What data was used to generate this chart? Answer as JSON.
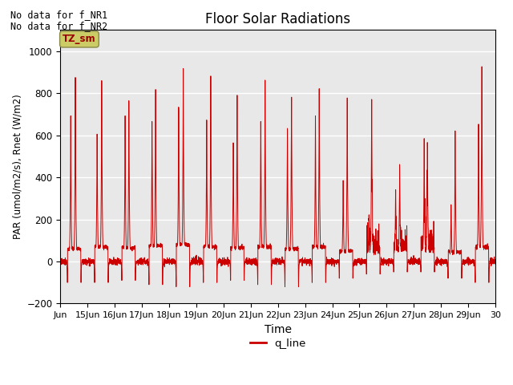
{
  "title": "Floor Solar Radiations",
  "xlabel": "Time",
  "ylabel": "PAR (umol/m2/s), Rnet (W/m2)",
  "annotations": [
    "No data for f_NR1",
    "No data for f_NR2"
  ],
  "legend_label": "q_line",
  "legend_color": "#cc0000",
  "line_color": "#cc0000",
  "tz_label": "TZ_sm",
  "tz_box_color": "#cccc66",
  "tz_text_color": "#990000",
  "background_color": "#e8e8e8",
  "ylim": [
    -200,
    1100
  ],
  "yticks": [
    -200,
    0,
    200,
    400,
    600,
    800,
    1000
  ],
  "xlim_start": 0,
  "xlim_end": 16,
  "xtick_labels": [
    "Jun",
    "15Jun",
    "16Jun",
    "17Jun",
    "18Jun",
    "19Jun",
    "20Jun",
    "21Jun",
    "22Jun",
    "23Jun",
    "24Jun",
    "25Jun",
    "26Jun",
    "27Jun",
    "28Jun",
    "29Jun",
    "30"
  ],
  "figsize": [
    6.4,
    4.8
  ],
  "dpi": 100
}
